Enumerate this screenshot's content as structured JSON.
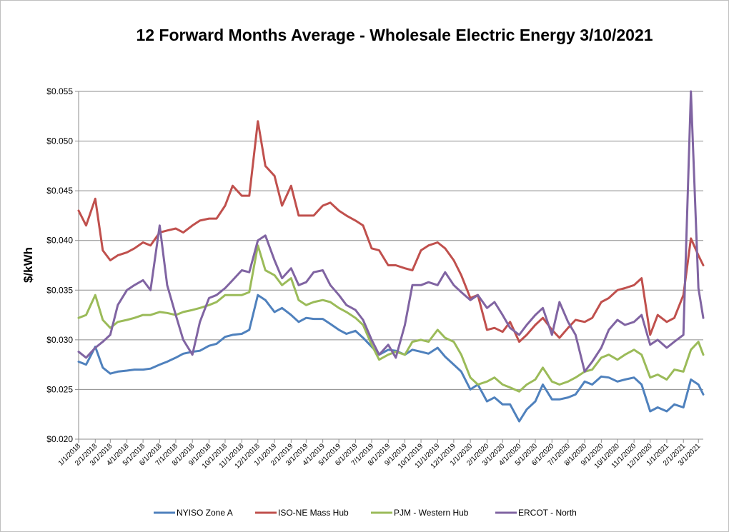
{
  "chart_data": {
    "type": "line",
    "title": "12 Forward Months Average - Wholesale Electric Energy 3/10/2021",
    "xlabel": "",
    "ylabel": "$/kWh",
    "ylim": [
      0.02,
      0.055
    ],
    "yticks": [
      "$0.020",
      "$0.025",
      "$0.030",
      "$0.035",
      "$0.040",
      "$0.045",
      "$0.050",
      "$0.055"
    ],
    "yticks_values": [
      0.02,
      0.025,
      0.03,
      0.035,
      0.04,
      0.045,
      0.05,
      0.055
    ],
    "xticks": [
      "1/1/2018",
      "2/1/2018",
      "3/1/2018",
      "4/1/2018",
      "5/1/2018",
      "6/1/2018",
      "7/1/2018",
      "8/1/2018",
      "9/1/2018",
      "10/1/2018",
      "11/1/2018",
      "12/1/2018",
      "1/1/2019",
      "2/1/2019",
      "3/1/2019",
      "4/1/2019",
      "5/1/2019",
      "6/1/2019",
      "7/1/2019",
      "8/1/2019",
      "9/1/2019",
      "10/1/2019",
      "11/1/2019",
      "12/1/2019",
      "1/1/2020",
      "2/1/2020",
      "3/1/2020",
      "4/1/2020",
      "5/1/2020",
      "6/1/2020",
      "7/1/2020",
      "8/1/2020",
      "9/1/2020",
      "10/1/2020",
      "11/1/2020",
      "12/1/2020",
      "1/1/2021",
      "2/1/2021",
      "3/1/2021"
    ],
    "x": [
      "1/1/2018",
      "1/15/2018",
      "2/1/2018",
      "2/15/2018",
      "3/1/2018",
      "3/15/2018",
      "4/1/2018",
      "4/15/2018",
      "5/1/2018",
      "5/15/2018",
      "6/1/2018",
      "6/15/2018",
      "7/1/2018",
      "7/15/2018",
      "8/1/2018",
      "8/15/2018",
      "9/1/2018",
      "9/15/2018",
      "10/1/2018",
      "10/15/2018",
      "11/1/2018",
      "11/15/2018",
      "12/1/2018",
      "12/15/2018",
      "1/1/2019",
      "1/15/2019",
      "2/1/2019",
      "2/15/2019",
      "3/1/2019",
      "3/15/2019",
      "4/1/2019",
      "4/15/2019",
      "5/1/2019",
      "5/15/2019",
      "6/1/2019",
      "6/15/2019",
      "7/1/2019",
      "7/15/2019",
      "8/1/2019",
      "8/15/2019",
      "9/1/2019",
      "9/15/2019",
      "10/1/2019",
      "10/15/2019",
      "11/1/2019",
      "11/15/2019",
      "12/1/2019",
      "12/15/2019",
      "1/1/2020",
      "1/15/2020",
      "2/1/2020",
      "2/15/2020",
      "3/1/2020",
      "3/15/2020",
      "4/1/2020",
      "4/15/2020",
      "5/1/2020",
      "5/15/2020",
      "6/1/2020",
      "6/15/2020",
      "7/1/2020",
      "7/15/2020",
      "8/1/2020",
      "8/15/2020",
      "9/1/2020",
      "9/15/2020",
      "10/1/2020",
      "10/15/2020",
      "11/1/2020",
      "11/15/2020",
      "12/1/2020",
      "12/15/2020",
      "1/1/2021",
      "1/15/2021",
      "2/1/2021",
      "2/15/2021",
      "3/1/2021",
      "3/10/2021"
    ],
    "series": [
      {
        "name": "NYISO Zone A",
        "color": "#4f81bd",
        "values": [
          0.0278,
          0.0275,
          0.0293,
          0.0272,
          0.0266,
          0.0268,
          0.0269,
          0.027,
          0.027,
          0.0271,
          0.0275,
          0.0278,
          0.0282,
          0.0286,
          0.0288,
          0.0289,
          0.0294,
          0.0296,
          0.0303,
          0.0305,
          0.0306,
          0.031,
          0.0345,
          0.034,
          0.0328,
          0.0332,
          0.0325,
          0.0318,
          0.0322,
          0.0321,
          0.0321,
          0.0316,
          0.031,
          0.0306,
          0.0309,
          0.0302,
          0.0293,
          0.0285,
          0.029,
          0.0289,
          0.0285,
          0.029,
          0.0288,
          0.0286,
          0.0292,
          0.0283,
          0.0275,
          0.0268,
          0.025,
          0.0255,
          0.0238,
          0.0242,
          0.0235,
          0.0235,
          0.0218,
          0.023,
          0.0238,
          0.0255,
          0.024,
          0.024,
          0.0242,
          0.0245,
          0.0258,
          0.0255,
          0.0263,
          0.0262,
          0.0258,
          0.026,
          0.0262,
          0.0255,
          0.0228,
          0.0232,
          0.0228,
          0.0235,
          0.0232,
          0.026,
          0.0255,
          0.0245
        ]
      },
      {
        "name": "ISO-NE Mass Hub",
        "color": "#c0504d",
        "values": [
          0.043,
          0.0415,
          0.0442,
          0.039,
          0.038,
          0.0385,
          0.0388,
          0.0392,
          0.0398,
          0.0395,
          0.0408,
          0.041,
          0.0412,
          0.0408,
          0.0415,
          0.042,
          0.0422,
          0.0422,
          0.0435,
          0.0455,
          0.0445,
          0.0445,
          0.052,
          0.0475,
          0.0465,
          0.0435,
          0.0455,
          0.0425,
          0.0425,
          0.0425,
          0.0435,
          0.0438,
          0.043,
          0.0425,
          0.042,
          0.0415,
          0.0392,
          0.039,
          0.0375,
          0.0375,
          0.0372,
          0.037,
          0.039,
          0.0395,
          0.0398,
          0.0392,
          0.038,
          0.0365,
          0.0342,
          0.0345,
          0.031,
          0.0312,
          0.0308,
          0.0318,
          0.0298,
          0.0305,
          0.0315,
          0.0322,
          0.031,
          0.0302,
          0.0312,
          0.032,
          0.0318,
          0.0322,
          0.0338,
          0.0342,
          0.035,
          0.0352,
          0.0355,
          0.0362,
          0.0305,
          0.0325,
          0.0318,
          0.0322,
          0.0345,
          0.0402,
          0.0385,
          0.0375
        ]
      },
      {
        "name": "PJM - Western Hub",
        "color": "#9bbb59",
        "values": [
          0.0322,
          0.0325,
          0.0345,
          0.032,
          0.0312,
          0.0318,
          0.032,
          0.0322,
          0.0325,
          0.0325,
          0.0328,
          0.0327,
          0.0325,
          0.0328,
          0.033,
          0.0332,
          0.0335,
          0.0338,
          0.0345,
          0.0345,
          0.0345,
          0.0348,
          0.0395,
          0.037,
          0.0365,
          0.0355,
          0.0362,
          0.034,
          0.0335,
          0.0338,
          0.034,
          0.0338,
          0.0332,
          0.0328,
          0.0322,
          0.0315,
          0.0295,
          0.028,
          0.0285,
          0.0288,
          0.0285,
          0.0298,
          0.03,
          0.0298,
          0.031,
          0.0302,
          0.0298,
          0.0285,
          0.0262,
          0.0255,
          0.0258,
          0.0262,
          0.0255,
          0.0252,
          0.0248,
          0.0255,
          0.026,
          0.0272,
          0.0258,
          0.0255,
          0.0258,
          0.0262,
          0.0268,
          0.027,
          0.0282,
          0.0285,
          0.028,
          0.0285,
          0.029,
          0.0285,
          0.0262,
          0.0265,
          0.026,
          0.027,
          0.0268,
          0.029,
          0.0298,
          0.0285
        ]
      },
      {
        "name": "ERCOT - North",
        "color": "#8064a2",
        "values": [
          0.0288,
          0.0282,
          0.0292,
          0.0298,
          0.0305,
          0.0335,
          0.035,
          0.0355,
          0.036,
          0.035,
          0.0415,
          0.0355,
          0.0325,
          0.03,
          0.0285,
          0.0318,
          0.0342,
          0.0345,
          0.0352,
          0.036,
          0.037,
          0.0368,
          0.04,
          0.0405,
          0.038,
          0.0362,
          0.0372,
          0.0355,
          0.0358,
          0.0368,
          0.037,
          0.0355,
          0.0345,
          0.0335,
          0.033,
          0.032,
          0.03,
          0.0285,
          0.0295,
          0.0282,
          0.0315,
          0.0355,
          0.0355,
          0.0358,
          0.0355,
          0.0368,
          0.0355,
          0.0348,
          0.034,
          0.0345,
          0.0332,
          0.0338,
          0.0325,
          0.0312,
          0.0305,
          0.0315,
          0.0325,
          0.0332,
          0.0305,
          0.0338,
          0.0318,
          0.0305,
          0.0268,
          0.0278,
          0.0292,
          0.031,
          0.032,
          0.0315,
          0.0318,
          0.0325,
          0.0295,
          0.03,
          0.0292,
          0.0298,
          0.0305,
          0.0552,
          0.0352,
          0.0322
        ]
      }
    ],
    "grid": true,
    "legend": "bottom"
  }
}
